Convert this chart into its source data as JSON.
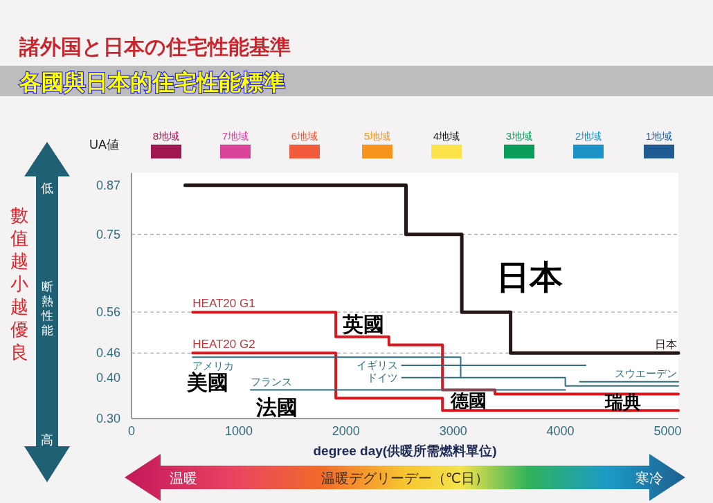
{
  "chart_data": {
    "type": "step",
    "title": "諸外国と日本の住宅性能基準",
    "subtitle": "各國與日本的住宅性能標準",
    "ylabel": "UA値",
    "xlabel": "degree day(供暖所需燃料單位)",
    "xlim": [
      0,
      5100
    ],
    "xticks": [
      0,
      1000,
      2000,
      3000,
      4000,
      5000
    ],
    "ylim": [
      0.3,
      0.9
    ],
    "yticks": [
      {
        "value": 0.3,
        "label": "0.30"
      },
      {
        "value": 0.4,
        "label": "0.40"
      },
      0.46,
      0.56,
      0.75,
      0.87
    ],
    "grid": false,
    "legend": false,
    "marker": "none",
    "line_style": "solid",
    "ref_lines": [
      {
        "axis": "y",
        "value": 0.75,
        "color": "#aaaaaa",
        "line_style": "dashed"
      },
      {
        "axis": "y",
        "value": 0.56,
        "color": "#aaaaaa",
        "line_style": "dashed"
      },
      {
        "axis": "y",
        "value": 0.46,
        "color": "#aaaaaa",
        "line_style": "dashed"
      }
    ],
    "series": [
      {
        "name": "日本",
        "color": "#231815",
        "x": [
          500,
          2560,
          3080,
          3535,
          5100
        ],
        "values": [
          0.87,
          0.75,
          0.56,
          0.46,
          0.46
        ]
      },
      {
        "name": "HEAT20  G1",
        "color": "#d7191f",
        "x": [
          570,
          1905,
          2400,
          2900,
          3390,
          5100
        ],
        "values": [
          0.56,
          0.5,
          0.48,
          0.37,
          0.36,
          0.36
        ]
      },
      {
        "name": "HEAT20  G2",
        "color": "#d7191f",
        "x": [
          570,
          1905,
          2900,
          5100
        ],
        "values": [
          0.46,
          0.35,
          0.32,
          0.32
        ]
      },
      {
        "name": "アメリカ",
        "color": "#2e6f84",
        "x": [
          570,
          3070
        ],
        "values": [
          0.45,
          0.4
        ]
      },
      {
        "name": "イギリス",
        "color": "#2e6f84",
        "x": [
          2520,
          4235
        ],
        "values": [
          0.43,
          0.43
        ]
      },
      {
        "name": "ドイツ",
        "color": "#2e6f84",
        "x": [
          2520,
          4045,
          5100
        ],
        "values": [
          0.4,
          0.38,
          0.38
        ]
      },
      {
        "name": "フランス",
        "color": "#2e6f84",
        "x": [
          1110,
          4045
        ],
        "values": [
          0.37,
          0.37
        ]
      },
      {
        "name": "スウエーデン",
        "color": "#2e6f84",
        "x": [
          4180,
          5100
        ],
        "values": [
          0.39,
          0.39
        ]
      }
    ],
    "annotations": [
      "8地域",
      "7地域",
      "6地域",
      "5地域",
      "4地域",
      "3地域",
      "2地域",
      "1地域",
      "數值越小越優良",
      "低",
      "断熱性能",
      "高",
      "温暖",
      "温暖デグリーデー（℃日）",
      "寒冷",
      "日本",
      "美國",
      "法國",
      "英國",
      "德國",
      "瑞典"
    ]
  }
}
